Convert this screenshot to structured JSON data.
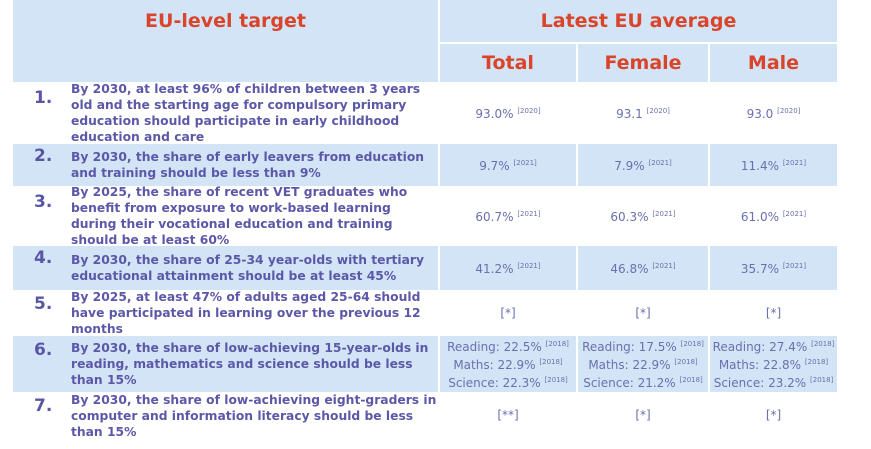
{
  "header": {
    "target": "EU-level target",
    "latest": "Latest EU average",
    "total": "Total",
    "female": "Female",
    "male": "Male"
  },
  "rows": [
    {
      "n": "1.",
      "text": "By 2030, at least 96% of children between 3 years old and the starting age for compulsory primary education should participate in early childhood education and care",
      "total": "93.0%",
      "total_y": "[2020]",
      "female": "93.1",
      "female_y": "[2020]",
      "male": "93.0",
      "male_y": "[2020]"
    },
    {
      "n": "2.",
      "text": "By 2030, the share of early leavers from education and training should be less than 9%",
      "total": "9.7%",
      "total_y": "[2021]",
      "female": "7.9%",
      "female_y": "[2021]",
      "male": "11.4%",
      "male_y": "[2021]"
    },
    {
      "n": "3.",
      "text": "By 2025, the share of recent VET graduates who benefit from exposure to work-based learning during their vocational education and training should be at least 60%",
      "total": "60.7%",
      "total_y": "[2021]",
      "female": "60.3%",
      "female_y": "[2021]",
      "male": "61.0%",
      "male_y": "[2021]"
    },
    {
      "n": "4.",
      "text": "By 2030, the share of 25-34 year-olds with tertiary educational attainment should be at least 45%",
      "total": "41.2%",
      "total_y": "[2021]",
      "female": "46.8%",
      "female_y": "[2021]",
      "male": "35.7%",
      "male_y": "[2021]"
    },
    {
      "n": "5.",
      "text": "By 2025, at least 47% of adults aged 25-64 should have participated in learning over the previous 12 months",
      "total": "[*]",
      "total_y": "",
      "female": "[*]",
      "female_y": "",
      "male": "[*]",
      "male_y": ""
    },
    {
      "n": "6.",
      "text": "By 2030, the share of low-achieving 15-year-olds in reading, mathematics and science should be less than 15%",
      "total_lines": [
        {
          "t": "Reading: 22.5%",
          "y": "[2018]"
        },
        {
          "t": "Maths: 22.9%",
          "y": "[2018]"
        },
        {
          "t": "Science: 22.3%",
          "y": "[2018]"
        }
      ],
      "female_lines": [
        {
          "t": "Reading: 17.5%",
          "y": "[2018]"
        },
        {
          "t": "Maths: 22.9%",
          "y": "[2018]"
        },
        {
          "t": "Science: 21.2%",
          "y": "[2018]"
        }
      ],
      "male_lines": [
        {
          "t": "Reading: 27.4%",
          "y": "[2018]"
        },
        {
          "t": "Maths: 22.8%",
          "y": "[2018]"
        },
        {
          "t": "Science: 23.2%",
          "y": "[2018]"
        }
      ]
    },
    {
      "n": "7.",
      "text": "By 2030, the share of low-achieving eight-graders in computer and information literacy should be less than 15%",
      "total": "[**]",
      "total_y": "",
      "female": "[*]",
      "female_y": "",
      "male": "[*]",
      "male_y": ""
    }
  ]
}
